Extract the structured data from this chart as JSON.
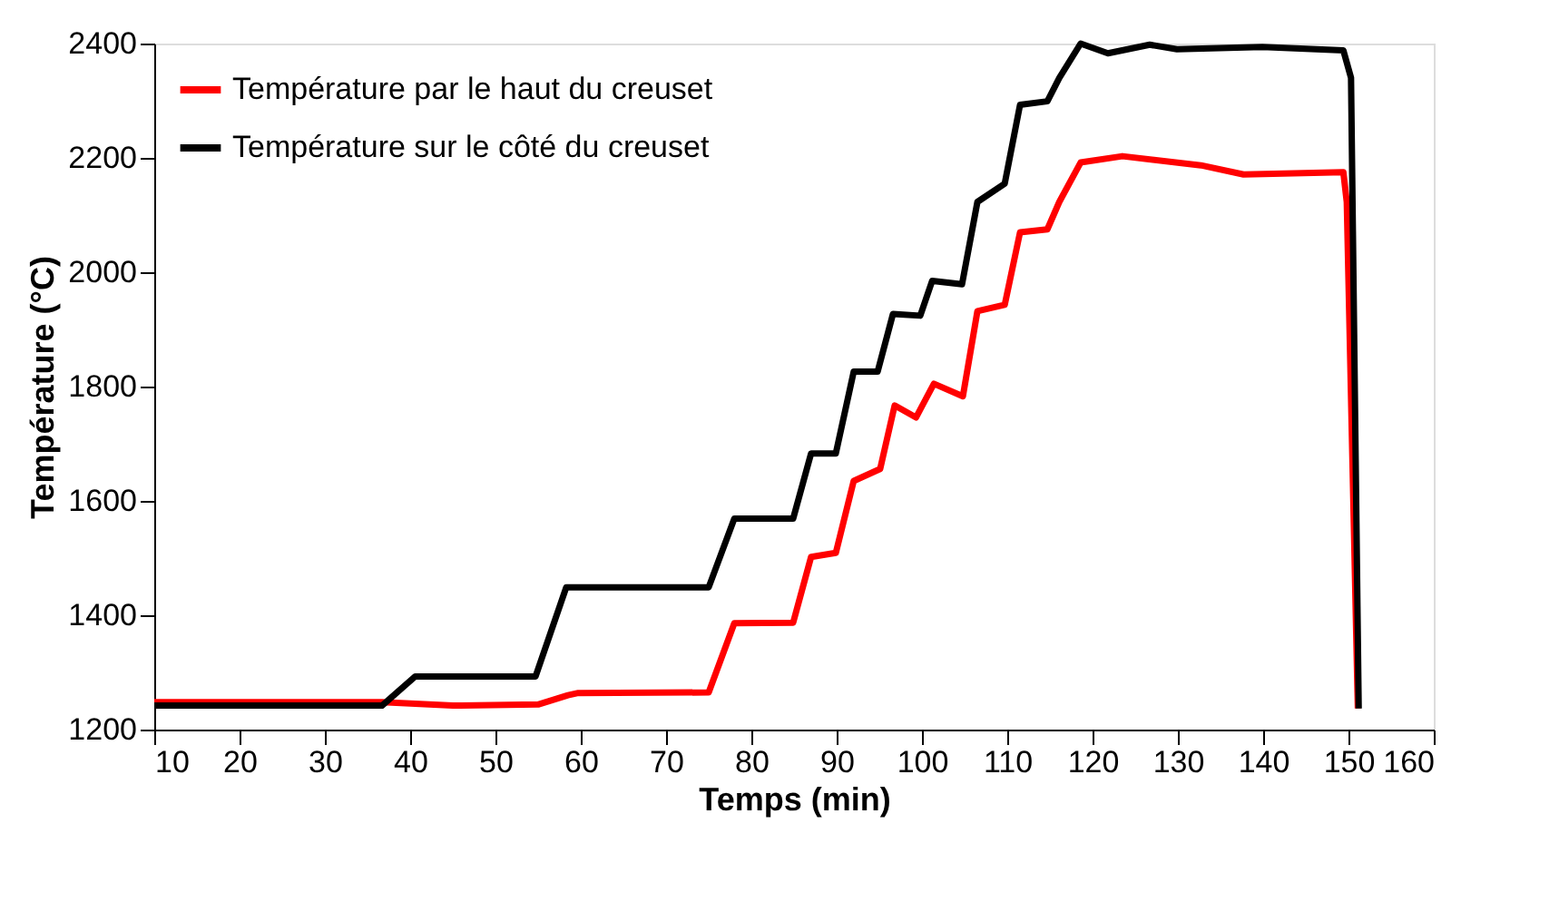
{
  "chart_data": {
    "type": "line",
    "xlabel": "Temps (min)",
    "ylabel": "Température (°C)",
    "xlim": [
      10,
      160
    ],
    "xticks": [
      10,
      20,
      30,
      40,
      50,
      60,
      70,
      80,
      90,
      100,
      110,
      120,
      130,
      140,
      150,
      160
    ],
    "ylim": [
      1200,
      2400
    ],
    "yticks": [
      1200,
      1400,
      1600,
      1800,
      2000,
      2200,
      2400
    ],
    "grid": false,
    "legend": "top left",
    "marker": "none",
    "line_style": "solid",
    "series": [
      {
        "name": "Température par le haut du creuset",
        "color": "#ff0000",
        "x": [
          10,
          36.7,
          45,
          55,
          58.5,
          59.7,
          75,
          78,
          84.9,
          87,
          89.9,
          92,
          95.1,
          96.8,
          99.3,
          101.4,
          104.8,
          106.5,
          109.7,
          111.5,
          114.7,
          116.1,
          118.6,
          123.5,
          132.7,
          137.7,
          149.4,
          149.8,
          151.1
        ],
        "values": [
          1248,
          1248,
          1242,
          1244,
          1260,
          1264,
          1265,
          1386,
          1387,
          1502,
          1509,
          1635,
          1656,
          1767,
          1746,
          1805,
          1783,
          1932,
          1943,
          2070,
          2075,
          2123,
          2192,
          2203,
          2187,
          2171,
          2175,
          2123,
          1237
        ]
      },
      {
        "name": "Température sur le côté du creuset",
        "color": "#000000",
        "x": [
          10,
          36.7,
          40.6,
          54.7,
          58.3,
          75,
          78,
          84.9,
          87,
          89.9,
          92,
          94.8,
          96.6,
          99.8,
          101.2,
          104.7,
          106.5,
          109.7,
          111.5,
          114.7,
          116.1,
          118.6,
          121.8,
          126.7,
          129.9,
          139.9,
          149.4,
          150.3,
          151.2
        ],
        "values": [
          1242,
          1242,
          1293,
          1293,
          1449,
          1449,
          1569,
          1569,
          1683,
          1683,
          1826,
          1826,
          1927,
          1924,
          1985,
          1979,
          2123,
          2155,
          2293,
          2299,
          2340,
          2400,
          2383,
          2398,
          2390,
          2394,
          2388,
          2340,
          1237
        ]
      }
    ]
  }
}
